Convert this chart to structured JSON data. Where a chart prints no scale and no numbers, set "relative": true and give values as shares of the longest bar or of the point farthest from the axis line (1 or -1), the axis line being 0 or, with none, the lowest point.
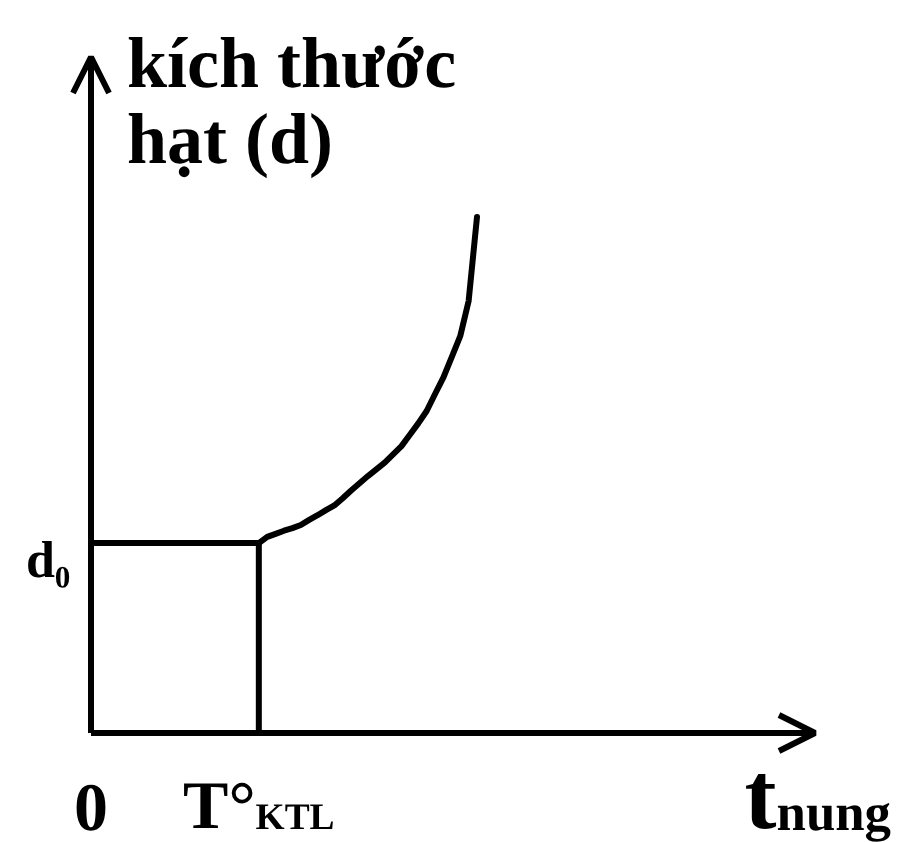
{
  "chart_data": {
    "type": "line",
    "relative": true,
    "xlabel": "t$_{nung}$",
    "ylabel": "kích thước hạt (d)",
    "categories": [
      "0",
      null,
      null,
      null,
      null,
      null,
      null,
      null,
      null,
      null,
      null,
      null,
      null,
      null,
      null,
      null,
      null,
      null,
      null,
      null,
      "T°$_{KTL}$",
      null,
      null,
      null,
      null,
      null,
      null,
      null,
      null,
      null,
      null,
      null,
      null,
      null,
      null,
      null,
      null,
      null,
      null,
      null,
      null,
      null,
      null,
      null,
      null,
      null,
      null
    ],
    "series": [
      {
        "color": "#000000",
        "values": [
          0.368,
          0.368,
          0.368,
          0.368,
          0.368,
          0.368,
          0.368,
          0.368,
          0.368,
          0.368,
          0.368,
          0.368,
          0.368,
          0.368,
          0.368,
          0.368,
          0.368,
          0.368,
          0.368,
          0.368,
          0.368,
          0.38,
          0.386,
          0.392,
          0.397,
          0.403,
          0.413,
          0.422,
          0.432,
          0.441,
          0.455,
          0.47,
          0.484,
          0.498,
          0.511,
          0.524,
          0.54,
          0.556,
          0.578,
          0.6,
          0.624,
          0.657,
          0.689,
          0.729,
          0.769,
          0.837,
          1
        ]
      },
      {
        "color": "#000000",
        "x": [
          "T°$_{KTL}$",
          "T°$_{KTL}$"
        ],
        "values": [
          0,
          0.368
        ]
      }
    ],
    "annotations": [
      "d₀"
    ],
    "line_style": "solid",
    "marker": "none"
  }
}
